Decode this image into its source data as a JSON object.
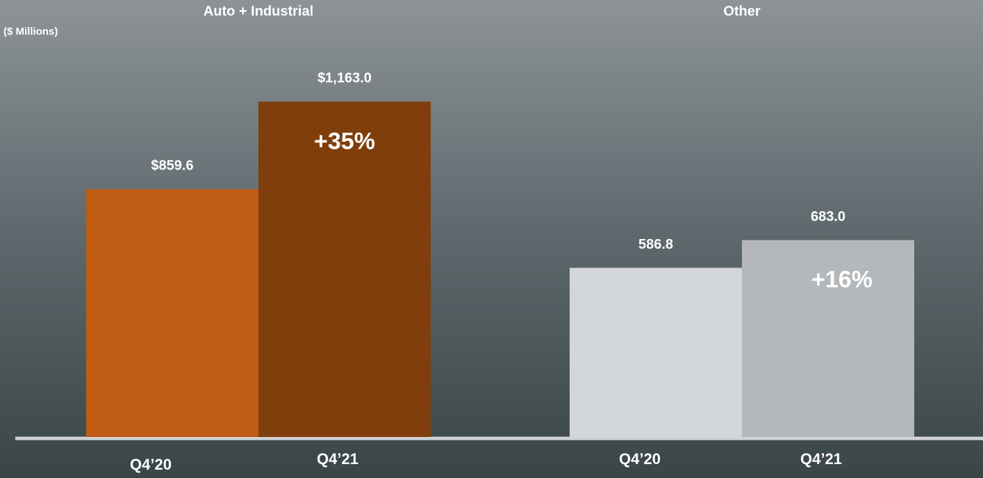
{
  "chart_data": [
    {
      "type": "bar",
      "title": "Auto + Industrial",
      "subtitle": "($ Millions)",
      "categories": [
        "Q4’20",
        "Q4’21"
      ],
      "values": [
        859.6,
        1163.0
      ],
      "value_labels": [
        "$859.6",
        "$1,163.0"
      ],
      "colors": [
        "#c05c14",
        "#7f3e0c"
      ],
      "annotation": "+35%",
      "ylim": [
        0,
        1400
      ]
    },
    {
      "type": "bar",
      "title": "Other",
      "categories": [
        "Q4’20",
        "Q4’21"
      ],
      "values": [
        586.8,
        683.0
      ],
      "value_labels": [
        "586.8",
        "683.0"
      ],
      "colors": [
        "#d3d6d9",
        "#b5b8bb"
      ],
      "annotation": "+16%",
      "ylim": [
        0,
        1400
      ]
    }
  ]
}
